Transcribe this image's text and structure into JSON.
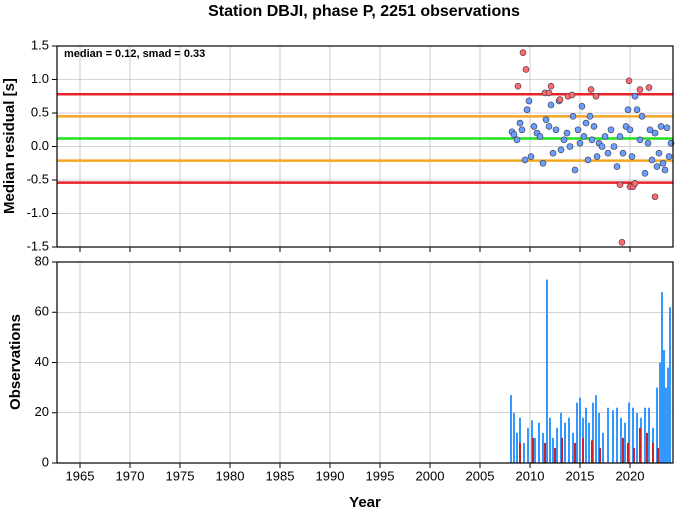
{
  "title": "Station DBJI, phase P, 2251 observations",
  "chart_data": [
    {
      "type": "scatter",
      "ylabel": "Median residual [s]",
      "annotation": "median = 0.12, smad = 0.33",
      "ylim": [
        -1.5,
        1.5
      ],
      "yticks": [
        -1.5,
        {
          "value": -1,
          "label": "-1.0"
        },
        -0.5,
        {
          "value": 0,
          "label": "0.0"
        },
        0.5,
        {
          "value": 1,
          "label": "1.0"
        },
        1.5
      ],
      "grid": true,
      "hlines": [
        {
          "value": 0.78,
          "color": "#e8232a"
        },
        {
          "value": 0.45,
          "color": "#f5a623"
        },
        {
          "value": 0.12,
          "color": "#22e022"
        },
        {
          "value": -0.21,
          "color": "#f5a623"
        },
        {
          "value": -0.54,
          "color": "#e8232a"
        }
      ],
      "series": [
        {
          "color": "#6a9eff",
          "x": [
            2008.2,
            2008.4,
            2008.7,
            2009.0,
            2009.2,
            2009.5,
            2009.7,
            2009.9,
            2010.1,
            2010.4,
            2010.7,
            2011.0,
            2011.3,
            2011.6,
            2011.9,
            2012.1,
            2012.3,
            2012.6,
            2012.9,
            2013.1,
            2013.4,
            2013.7,
            2014.0,
            2014.3,
            2014.5,
            2014.8,
            2015.0,
            2015.2,
            2015.4,
            2015.6,
            2015.8,
            2016.0,
            2016.2,
            2016.4,
            2016.7,
            2016.9,
            2017.2,
            2017.5,
            2017.8,
            2018.1,
            2018.4,
            2018.7,
            2019.0,
            2019.3,
            2019.6,
            2019.8,
            2020.0,
            2020.2,
            2020.5,
            2020.7,
            2021.0,
            2021.2,
            2021.5,
            2021.8,
            2022.0,
            2022.2,
            2022.5,
            2022.7,
            2022.9,
            2023.1,
            2023.3,
            2023.5,
            2023.7,
            2023.9,
            2024.1
          ],
          "values": [
            0.22,
            0.18,
            0.1,
            0.35,
            0.25,
            -0.2,
            0.55,
            0.68,
            -0.15,
            0.3,
            0.2,
            0.15,
            -0.25,
            0.4,
            0.3,
            0.62,
            -0.1,
            0.25,
            0.68,
            -0.05,
            0.1,
            0.2,
            0.0,
            0.45,
            -0.35,
            0.25,
            0.05,
            0.6,
            0.15,
            0.35,
            -0.2,
            0.45,
            0.1,
            0.3,
            -0.15,
            0.05,
            0.0,
            0.15,
            -0.1,
            0.25,
            0.0,
            -0.3,
            0.15,
            -0.1,
            0.3,
            0.55,
            0.25,
            -0.15,
            0.75,
            0.55,
            0.1,
            0.45,
            -0.4,
            0.05,
            0.25,
            -0.2,
            0.2,
            -0.3,
            -0.1,
            0.3,
            -0.25,
            -0.35,
            0.28,
            -0.15,
            0.05
          ]
        },
        {
          "color": "#ff6a6a",
          "x": [
            2008.8,
            2009.3,
            2009.6,
            2011.5,
            2011.9,
            2012.1,
            2013.0,
            2013.8,
            2014.2,
            2016.1,
            2016.6,
            2019.0,
            2019.2,
            2019.9,
            2020.0,
            2020.3,
            2020.5,
            2021.0,
            2021.9,
            2022.5
          ],
          "values": [
            0.9,
            1.4,
            1.15,
            0.8,
            0.8,
            0.9,
            0.7,
            0.75,
            0.77,
            0.85,
            0.75,
            -0.57,
            -1.43,
            0.98,
            -0.6,
            -0.6,
            -0.55,
            0.85,
            0.88,
            -0.75
          ]
        }
      ]
    },
    {
      "type": "bar",
      "ylabel": "Observations",
      "xlabel": "Year",
      "xlim": [
        1962.7,
        2024.3
      ],
      "xticks": [
        1965,
        1970,
        1975,
        1980,
        1985,
        1990,
        1995,
        2000,
        2005,
        2010,
        2015,
        2020
      ],
      "ylim": [
        0,
        80
      ],
      "yticks": [
        0,
        20,
        40,
        60,
        80
      ],
      "grid": true,
      "series": [
        {
          "color": "#3399ff",
          "x": [
            2008.1,
            2008.4,
            2008.7,
            2009.0,
            2009.4,
            2009.8,
            2010.2,
            2010.5,
            2010.9,
            2011.3,
            2011.7,
            2012.0,
            2012.3,
            2012.7,
            2013.1,
            2013.5,
            2013.9,
            2014.3,
            2014.7,
            2015.0,
            2015.3,
            2015.6,
            2015.9,
            2016.3,
            2016.6,
            2016.9,
            2017.3,
            2017.8,
            2018.3,
            2018.7,
            2019.1,
            2019.5,
            2019.9,
            2020.3,
            2020.7,
            2021.1,
            2021.5,
            2021.9,
            2022.3,
            2022.7,
            2023.0,
            2023.2,
            2023.4,
            2023.6,
            2023.8,
            2024.0
          ],
          "values": [
            27,
            20,
            12,
            18,
            8,
            14,
            17,
            10,
            16,
            12,
            73,
            18,
            10,
            14,
            20,
            16,
            18,
            12,
            24,
            26,
            18,
            22,
            16,
            24,
            27,
            20,
            12,
            22,
            21,
            22,
            18,
            16,
            24,
            22,
            20,
            18,
            22,
            22,
            14,
            30,
            40,
            68,
            45,
            30,
            38,
            62
          ]
        },
        {
          "color": "#cc2222",
          "x": [
            2009.0,
            2010.3,
            2011.5,
            2012.5,
            2013.2,
            2014.5,
            2015.3,
            2016.2,
            2017.0,
            2019.3,
            2019.8,
            2020.4,
            2021.0,
            2021.7,
            2022.3,
            2022.8
          ],
          "values": [
            8,
            10,
            8,
            6,
            10,
            8,
            10,
            9,
            6,
            10,
            8,
            6,
            14,
            12,
            8,
            6
          ]
        }
      ]
    }
  ]
}
